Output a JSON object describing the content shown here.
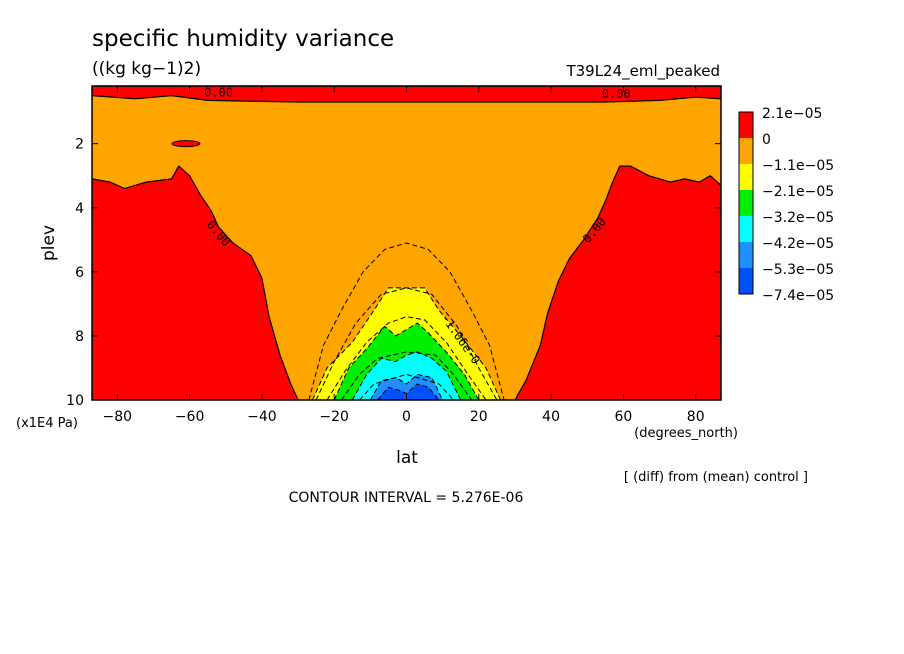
{
  "chart_data": {
    "type": "heatmap",
    "title": "specific humidity variance",
    "units": "((kg kg−1)2)",
    "experiment": "T39L24_eml_peaked",
    "xlabel": "lat",
    "xunits": "(degrees_north)",
    "ylabel": "plev",
    "yunits": "(x1E4 Pa)",
    "x_ticks": [
      "−80",
      "−60",
      "−40",
      "−20",
      "0",
      "20",
      "40",
      "60",
      "80"
    ],
    "x_tick_values": [
      -80,
      -60,
      -40,
      -20,
      0,
      20,
      40,
      60,
      80
    ],
    "y_ticks": [
      "2",
      "4",
      "6",
      "8",
      "10"
    ],
    "y_tick_values": [
      2,
      4,
      6,
      8,
      10
    ],
    "xlim": [
      -87,
      87
    ],
    "ylim": [
      10,
      0.2
    ],
    "contour_labels": [
      "0.00",
      "0.00",
      "0.00",
      "0.00",
      "-1.06e-0"
    ],
    "contour_interval_text": "CONTOUR INTERVAL = 5.276E-06",
    "note": "[ (diff) from (mean) control ]",
    "colorbar": [
      {
        "label": "2.1e−05",
        "color": "#ff0000"
      },
      {
        "label": "0",
        "color": "#ffa500"
      },
      {
        "label": "−1.1e−05",
        "color": "#ffff00"
      },
      {
        "label": "−2.1e−05",
        "color": "#00ee00"
      },
      {
        "label": "−3.2e−05",
        "color": "#00ffff"
      },
      {
        "label": "−4.2e−05",
        "color": "#1e90ff"
      },
      {
        "label": "−5.3e−05",
        "color": "#0050ff"
      },
      {
        "label": "−7.4e−05",
        "color": ""
      }
    ],
    "field": {
      "background_color": "#ffa500",
      "positive_color": "#ff0000",
      "left_positive_boundary": [
        [
          -87,
          3.1
        ],
        [
          -82,
          3.2
        ],
        [
          -78,
          3.4
        ],
        [
          -72,
          3.2
        ],
        [
          -65,
          3.1
        ],
        [
          -63,
          2.7
        ],
        [
          -60,
          3.0
        ],
        [
          -57,
          3.6
        ],
        [
          -54,
          4.1
        ],
        [
          -52,
          4.6
        ],
        [
          -48,
          5.1
        ],
        [
          -43,
          5.5
        ],
        [
          -40,
          6.2
        ],
        [
          -38,
          7.4
        ],
        [
          -35,
          8.6
        ],
        [
          -32,
          9.5
        ],
        [
          -30,
          10
        ]
      ],
      "right_positive_boundary": [
        [
          30,
          10
        ],
        [
          33,
          9.4
        ],
        [
          37,
          8.3
        ],
        [
          39,
          7.3
        ],
        [
          42,
          6.3
        ],
        [
          45,
          5.6
        ],
        [
          49,
          5.0
        ],
        [
          53,
          4.3
        ],
        [
          55,
          3.8
        ],
        [
          57,
          3.2
        ],
        [
          59,
          2.7
        ],
        [
          62,
          2.7
        ],
        [
          67,
          3.0
        ],
        [
          73,
          3.2
        ],
        [
          77,
          3.1
        ],
        [
          81,
          3.2
        ],
        [
          84,
          3.0
        ],
        [
          87,
          3.3
        ]
      ],
      "top_band": [
        [
          -87,
          0.2
        ],
        [
          -87,
          0.5
        ],
        [
          -75,
          0.6
        ],
        [
          -65,
          0.5
        ],
        [
          -55,
          0.65
        ],
        [
          -30,
          0.7
        ],
        [
          0,
          0.7
        ],
        [
          30,
          0.7
        ],
        [
          55,
          0.7
        ],
        [
          70,
          0.65
        ],
        [
          80,
          0.55
        ],
        [
          87,
          0.6
        ],
        [
          87,
          0.2
        ]
      ],
      "small_positive_patch": {
        "x": -61,
        "y": 2.0
      },
      "negative_tongue": {
        "yellow": [
          [
            -26,
            10
          ],
          [
            -22,
            9.0
          ],
          [
            -15,
            8.2
          ],
          [
            -9,
            7.2
          ],
          [
            -5,
            6.5
          ],
          [
            5,
            6.5
          ],
          [
            9,
            7.2
          ],
          [
            15,
            8.0
          ],
          [
            22,
            9.0
          ],
          [
            26,
            10
          ]
        ],
        "green": [
          [
            -20,
            10
          ],
          [
            -16,
            9.0
          ],
          [
            -11,
            8.4
          ],
          [
            -6,
            7.7
          ],
          [
            -3,
            8.0
          ],
          [
            0,
            7.8
          ],
          [
            3,
            7.6
          ],
          [
            6,
            7.9
          ],
          [
            11,
            8.5
          ],
          [
            16,
            9.2
          ],
          [
            20,
            10
          ]
        ],
        "cyan": [
          [
            -15,
            10
          ],
          [
            -11,
            9.2
          ],
          [
            -7,
            8.7
          ],
          [
            -3,
            8.8
          ],
          [
            0,
            8.6
          ],
          [
            3,
            8.5
          ],
          [
            7,
            8.7
          ],
          [
            11,
            9.1
          ],
          [
            15,
            10
          ]
        ],
        "dodger": [
          [
            -10,
            10
          ],
          [
            -7,
            9.4
          ],
          [
            -3,
            9.3
          ],
          [
            0,
            9.5
          ],
          [
            3,
            9.2
          ],
          [
            7,
            9.3
          ],
          [
            10,
            10
          ]
        ],
        "blue": [
          [
            -8,
            10
          ],
          [
            -5,
            9.6
          ],
          [
            -2,
            9.7
          ],
          [
            0,
            9.8
          ],
          [
            3,
            9.5
          ],
          [
            6,
            9.6
          ],
          [
            9,
            10
          ]
        ]
      },
      "dashed_contours": [
        [
          [
            -27,
            10
          ],
          [
            -23,
            8.3
          ],
          [
            -18,
            7.2
          ],
          [
            -12,
            6.0
          ],
          [
            -6,
            5.3
          ],
          [
            0,
            5.1
          ],
          [
            6,
            5.3
          ],
          [
            12,
            6.0
          ],
          [
            18,
            7.2
          ],
          [
            23,
            8.3
          ],
          [
            27,
            10
          ]
        ],
        [
          [
            -25,
            10
          ],
          [
            -20,
            8.8
          ],
          [
            -14,
            7.6
          ],
          [
            -7,
            6.7
          ],
          [
            0,
            6.5
          ],
          [
            7,
            6.7
          ],
          [
            14,
            7.7
          ],
          [
            20,
            9.0
          ],
          [
            25,
            10
          ]
        ],
        [
          [
            -22,
            10
          ],
          [
            -17,
            9.1
          ],
          [
            -11,
            8.2
          ],
          [
            -5,
            7.6
          ],
          [
            0,
            7.4
          ],
          [
            5,
            7.5
          ],
          [
            11,
            8.2
          ],
          [
            17,
            9.2
          ],
          [
            22,
            10
          ]
        ],
        [
          [
            -18,
            10
          ],
          [
            -13,
            9.2
          ],
          [
            -8,
            8.7
          ],
          [
            0,
            8.5
          ],
          [
            8,
            8.6
          ],
          [
            13,
            9.2
          ],
          [
            18,
            10
          ]
        ],
        [
          [
            -13,
            10
          ],
          [
            -9,
            9.5
          ],
          [
            0,
            9.2
          ],
          [
            9,
            9.5
          ],
          [
            13,
            10
          ]
        ]
      ]
    }
  }
}
